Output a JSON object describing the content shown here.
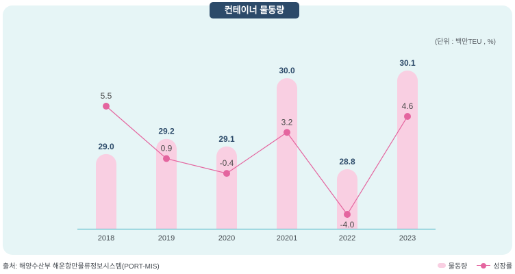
{
  "title": "컨테이너 물동량",
  "unit_note": "(단위 : 백만TEU , %)",
  "source": "출처: 해양수산부 해운항만물류정보시스템(PORT-MIS)",
  "legend": {
    "bar_label": "물동량",
    "line_label": "성장률"
  },
  "colors": {
    "bar": "#f9cfe2",
    "line": "#e4659f",
    "panel": "#e6f5f6",
    "badge": "#2c4a69",
    "axis": "#63c0cf",
    "bar_value": "#2c4a69",
    "line_value": "#4a4a4a"
  },
  "chart_data": {
    "type": "bar",
    "categories": [
      "2018",
      "2019",
      "2020",
      "20201",
      "2022",
      "2023"
    ],
    "series": [
      {
        "name": "물동량",
        "type": "bar",
        "values": [
          29.0,
          29.2,
          29.1,
          30.0,
          28.8,
          30.1
        ],
        "labels": [
          "29.0",
          "29.2",
          "29.1",
          "30.0",
          "28.8",
          "30.1"
        ]
      },
      {
        "name": "성장률",
        "type": "line",
        "values": [
          5.5,
          0.9,
          -0.4,
          3.2,
          -4.0,
          4.6
        ],
        "labels": [
          "5.5",
          "0.9",
          "-0.4",
          "3.2",
          "-4.0",
          "4.6"
        ]
      }
    ],
    "grid": false,
    "legend_position": "bottom-right"
  }
}
